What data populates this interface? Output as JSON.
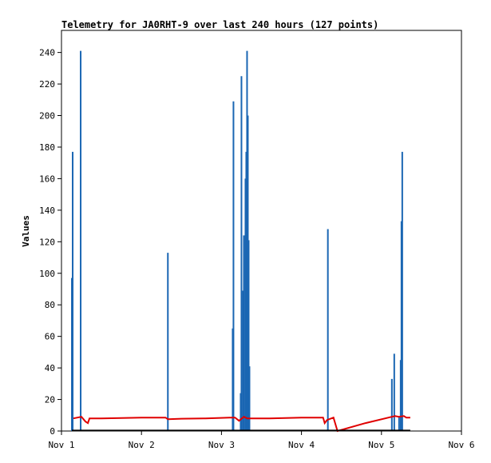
{
  "chart_data": {
    "type": "line",
    "title": "Telemetry for JA0RHT-9 over last 240 hours (127 points)",
    "ylabel": "Values",
    "xlabel": "",
    "ylim": [
      0,
      254
    ],
    "xlim": [
      1.0,
      6.0
    ],
    "x_ticks": [
      {
        "value": 1,
        "label": "Nov 1"
      },
      {
        "value": 2,
        "label": "Nov 2"
      },
      {
        "value": 3,
        "label": "Nov 3"
      },
      {
        "value": 4,
        "label": "Nov 4"
      },
      {
        "value": 5,
        "label": "Nov 5"
      },
      {
        "value": 6,
        "label": "Nov 6"
      }
    ],
    "y_ticks": [
      0,
      20,
      40,
      60,
      80,
      100,
      120,
      140,
      160,
      180,
      200,
      220,
      240
    ],
    "grid": false,
    "series": [
      {
        "color": "#1a66b3",
        "style": "spikes",
        "points": [
          [
            1.13,
            97
          ],
          [
            1.14,
            177
          ],
          [
            1.24,
            241
          ],
          [
            2.33,
            113
          ],
          [
            3.14,
            65
          ],
          [
            3.15,
            209
          ],
          [
            3.24,
            24
          ],
          [
            3.25,
            225
          ],
          [
            3.27,
            89
          ],
          [
            3.28,
            124
          ],
          [
            3.3,
            160
          ],
          [
            3.31,
            177
          ],
          [
            3.32,
            241
          ],
          [
            3.33,
            200
          ],
          [
            3.34,
            121
          ],
          [
            3.35,
            41
          ],
          [
            4.33,
            128
          ],
          [
            5.13,
            33
          ],
          [
            5.16,
            49
          ],
          [
            5.22,
            9
          ],
          [
            5.24,
            45
          ],
          [
            5.25,
            133
          ],
          [
            5.26,
            177
          ]
        ]
      },
      {
        "color": "#e00000",
        "style": "line",
        "points": [
          [
            1.15,
            8
          ],
          [
            1.25,
            9
          ],
          [
            1.3,
            6
          ],
          [
            1.33,
            5
          ],
          [
            1.35,
            8
          ],
          [
            1.5,
            8
          ],
          [
            2.0,
            8.5
          ],
          [
            2.3,
            8.5
          ],
          [
            2.33,
            7.5
          ],
          [
            2.5,
            7.8
          ],
          [
            2.8,
            8
          ],
          [
            3.1,
            8.5
          ],
          [
            3.17,
            8.5
          ],
          [
            3.22,
            6.5
          ],
          [
            3.28,
            9
          ],
          [
            3.32,
            8
          ],
          [
            3.36,
            8
          ],
          [
            3.6,
            8
          ],
          [
            4.0,
            8.5
          ],
          [
            4.27,
            8.5
          ],
          [
            4.29,
            5
          ],
          [
            4.32,
            7
          ],
          [
            4.4,
            8.5
          ],
          [
            4.45,
            0
          ],
          [
            4.8,
            5
          ],
          [
            5.13,
            9
          ],
          [
            5.17,
            9.5
          ],
          [
            5.22,
            9
          ],
          [
            5.28,
            9.5
          ],
          [
            5.31,
            8.5
          ],
          [
            5.36,
            8.5
          ]
        ]
      },
      {
        "color": "#000000",
        "style": "line",
        "points": [
          [
            1.13,
            0.3
          ],
          [
            5.36,
            0.3
          ]
        ]
      }
    ]
  }
}
